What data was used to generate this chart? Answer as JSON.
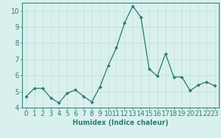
{
  "x": [
    0,
    1,
    2,
    3,
    4,
    5,
    6,
    7,
    8,
    9,
    10,
    11,
    12,
    13,
    14,
    15,
    16,
    17,
    18,
    19,
    20,
    21,
    22,
    23
  ],
  "y": [
    4.7,
    5.2,
    5.2,
    4.6,
    4.3,
    4.9,
    5.1,
    4.7,
    4.35,
    5.3,
    6.6,
    7.7,
    9.25,
    10.3,
    9.6,
    6.4,
    5.95,
    7.35,
    5.9,
    5.9,
    5.05,
    5.4,
    5.6,
    5.35
  ],
  "line_color": "#2e7d6e",
  "marker": "D",
  "marker_size": 2.2,
  "bg_color": "#d8f0ee",
  "grid_major_color": "#c8e0dc",
  "grid_minor_color": "#ddecea",
  "xlabel": "Humidex (Indice chaleur)",
  "ylim": [
    4,
    10.5
  ],
  "xlim": [
    -0.5,
    23.5
  ],
  "yticks": [
    4,
    5,
    6,
    7,
    8,
    9,
    10
  ],
  "xticks": [
    0,
    1,
    2,
    3,
    4,
    5,
    6,
    7,
    8,
    9,
    10,
    11,
    12,
    13,
    14,
    15,
    16,
    17,
    18,
    19,
    20,
    21,
    22,
    23
  ],
  "xlabel_fontsize": 7,
  "tick_fontsize": 7,
  "axis_color": "#2e7d6e",
  "spine_color": "#2e7d6e",
  "linewidth": 1.0
}
